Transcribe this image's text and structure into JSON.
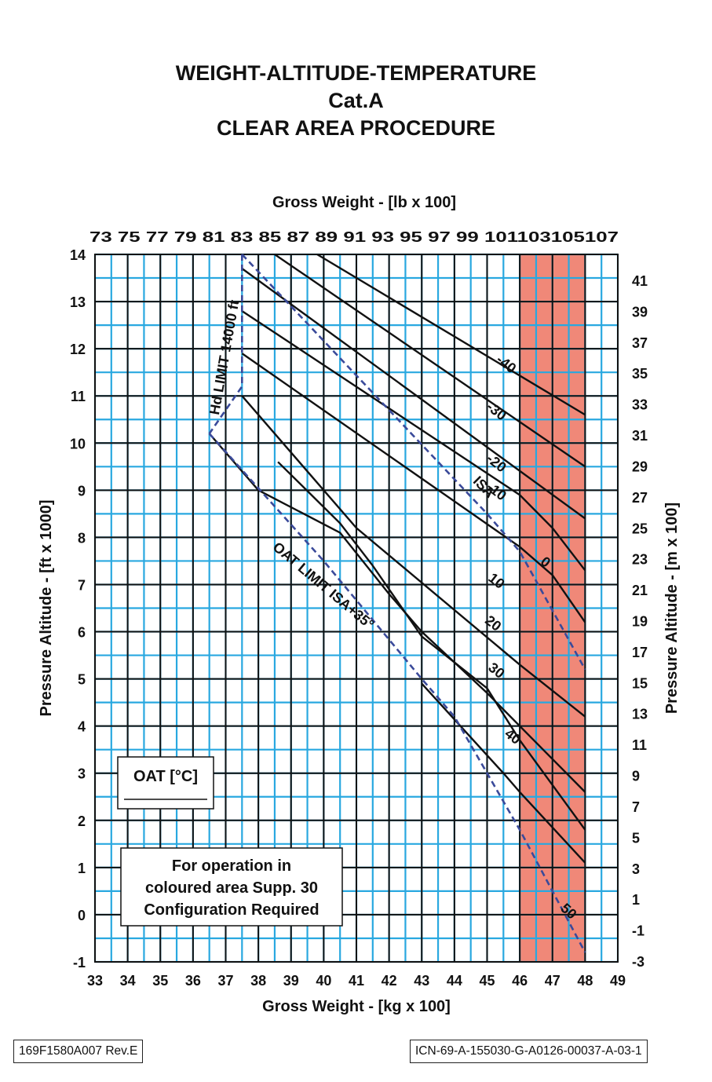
{
  "title": {
    "line1": "WEIGHT-ALTITUDE-TEMPERATURE",
    "line2": "Cat.A",
    "line3": "CLEAR AREA PROCEDURE"
  },
  "footer": {
    "doc_ref": "169F1580A007 Rev.E",
    "icn_ref": "ICN-69-A-155030-G-A0126-00037-A-03-1"
  },
  "chart_data": {
    "type": "line",
    "xlabel": "Gross Weight - [kg x 100]",
    "x2label": "Gross Weight - [lb x 100]",
    "ylabel": "Pressure Altitude - [ft x 1000]",
    "y2label": "Pressure Altitude - [m x 100]",
    "xlim": [
      33,
      49
    ],
    "ylim": [
      -1,
      14
    ],
    "x_ticks": [
      "33",
      "34",
      "35",
      "36",
      "37",
      "38",
      "39",
      "40",
      "41",
      "42",
      "43",
      "44",
      "45",
      "46",
      "47",
      "48",
      "49"
    ],
    "y_ticks": [
      "-1",
      "0",
      "1",
      "2",
      "3",
      "4",
      "5",
      "6",
      "7",
      "8",
      "9",
      "10",
      "11",
      "12",
      "13",
      "14"
    ],
    "x2_ticks": [
      "73",
      "75",
      "77",
      "79",
      "81",
      "83",
      "85",
      "87",
      "89",
      "91",
      "93",
      "95",
      "97",
      "99",
      "101",
      "103",
      "105",
      "107"
    ],
    "x2_label_text": "73 75 77 79 81 83 85 87 89 91 93 95 97 99 101103105107",
    "y2_ticks": [
      "41",
      "39",
      "37",
      "35",
      "33",
      "31",
      "29",
      "27",
      "25",
      "23",
      "21",
      "19",
      "17",
      "15",
      "13",
      "11",
      "9",
      "7",
      "5",
      "3",
      "1",
      "-1",
      "-3"
    ],
    "oat_legend": "OAT [°C]",
    "legend_note": "For operation in coloured area Supp. 30 Configuration Required",
    "legend_note_lines": [
      "For operation in",
      "coloured area Supp. 30",
      "Configuration Required"
    ],
    "shaded_region": {
      "x_from": 46,
      "x_to": 48,
      "color": "#f08878",
      "meaning": "coloured area Supp. 30"
    },
    "series": [
      {
        "name": "-40",
        "label": "-40",
        "points": [
          [
            39.8,
            14.0
          ],
          [
            48.0,
            10.6
          ]
        ]
      },
      {
        "name": "-30",
        "label": "-30",
        "points": [
          [
            38.5,
            14.0
          ],
          [
            48.0,
            9.5
          ]
        ]
      },
      {
        "name": "-20",
        "label": "-20",
        "points": [
          [
            37.5,
            13.7
          ],
          [
            48.0,
            8.4
          ]
        ]
      },
      {
        "name": "-10",
        "label": "-10",
        "points": [
          [
            37.5,
            12.8
          ],
          [
            46.0,
            8.9
          ],
          [
            47.0,
            8.2
          ],
          [
            48.0,
            7.3
          ]
        ]
      },
      {
        "name": "0",
        "label": "0",
        "points": [
          [
            37.5,
            11.9
          ],
          [
            46.0,
            7.8
          ],
          [
            47.0,
            7.2
          ],
          [
            48.0,
            6.2
          ]
        ]
      },
      {
        "name": "10",
        "label": "10",
        "points": [
          [
            37.5,
            11.0
          ],
          [
            41.0,
            8.2
          ],
          [
            46.0,
            5.3
          ],
          [
            48.0,
            4.2
          ]
        ]
      },
      {
        "name": "20",
        "label": "20",
        "points": [
          [
            36.5,
            10.2
          ],
          [
            38.0,
            9.0
          ],
          [
            40.5,
            8.1
          ],
          [
            42.0,
            6.8
          ],
          [
            43.0,
            6.0
          ],
          [
            45.0,
            4.7
          ],
          [
            46.0,
            4.0
          ],
          [
            48.0,
            2.6
          ]
        ]
      },
      {
        "name": "30",
        "label": "30",
        "points": [
          [
            38.6,
            9.6
          ],
          [
            40.5,
            8.3
          ],
          [
            41.5,
            7.4
          ],
          [
            42.5,
            6.4
          ],
          [
            43.0,
            5.9
          ],
          [
            45.0,
            4.8
          ],
          [
            46.0,
            3.7
          ],
          [
            48.0,
            1.8
          ]
        ]
      },
      {
        "name": "40",
        "label": "40",
        "points": [
          [
            43.0,
            4.9
          ],
          [
            45.5,
            3.0
          ],
          [
            46.0,
            2.6
          ],
          [
            48.0,
            1.1
          ]
        ]
      }
    ],
    "limit_lines": [
      {
        "name": "Hd LIMIT 14000 ft",
        "label": "Hd LIMIT 14000 ft",
        "style": "dashed",
        "color": "#3a4a9a",
        "points": [
          [
            37.5,
            14.0
          ],
          [
            37.5,
            11.2
          ],
          [
            36.5,
            10.2
          ]
        ]
      },
      {
        "name": "ISA",
        "label": "ISA",
        "style": "dashed",
        "color": "#3a4a9a",
        "points": [
          [
            37.5,
            14.0
          ],
          [
            45.0,
            8.5
          ],
          [
            46.0,
            7.7
          ],
          [
            48.0,
            5.2
          ]
        ]
      },
      {
        "name": "OAT LIMIT ISA+35°",
        "label": "OAT LIMIT ISA+35°",
        "style": "dashed",
        "color": "#3a4a9a",
        "points": [
          [
            36.5,
            10.2
          ],
          [
            40.0,
            7.5
          ],
          [
            43.0,
            5.0
          ],
          [
            44.0,
            4.2
          ],
          [
            46.0,
            1.8
          ],
          [
            48.0,
            -0.8
          ]
        ]
      }
    ],
    "extra_label": {
      "text": "50",
      "x": 47.4,
      "y": 0.0
    }
  }
}
